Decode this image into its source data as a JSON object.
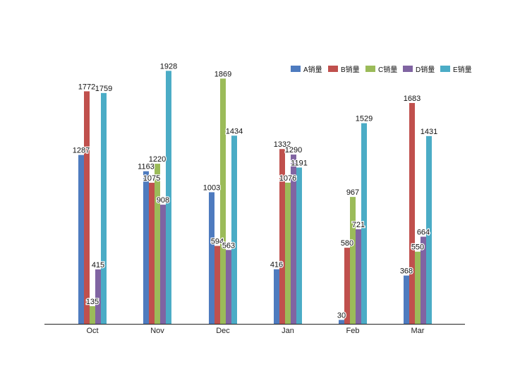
{
  "chart_data": {
    "type": "bar",
    "title": "",
    "xlabel": "",
    "ylabel": "",
    "categories": [
      "Oct",
      "Nov",
      "Dec",
      "Jan",
      "Feb",
      "Mar"
    ],
    "ylim": [
      0,
      2000
    ],
    "grid": false,
    "legend_position": "top-right",
    "series": [
      {
        "name": "A销量",
        "color": "#4e7bbf",
        "values": [
          1287,
          1163,
          1003,
          416,
          30,
          368
        ]
      },
      {
        "name": "B销量",
        "color": "#c0504d",
        "values": [
          1772,
          1075,
          594,
          1332,
          580,
          1683
        ]
      },
      {
        "name": "C销量",
        "color": "#9bbb59",
        "values": [
          135,
          1220,
          1869,
          1076,
          967,
          550
        ]
      },
      {
        "name": "D销量",
        "color": "#8064a2",
        "values": [
          415,
          908,
          563,
          1290,
          721,
          664
        ]
      },
      {
        "name": "E销量",
        "color": "#4bacc6",
        "values": [
          1759,
          1928,
          1434,
          1191,
          1529,
          1431
        ]
      }
    ]
  }
}
